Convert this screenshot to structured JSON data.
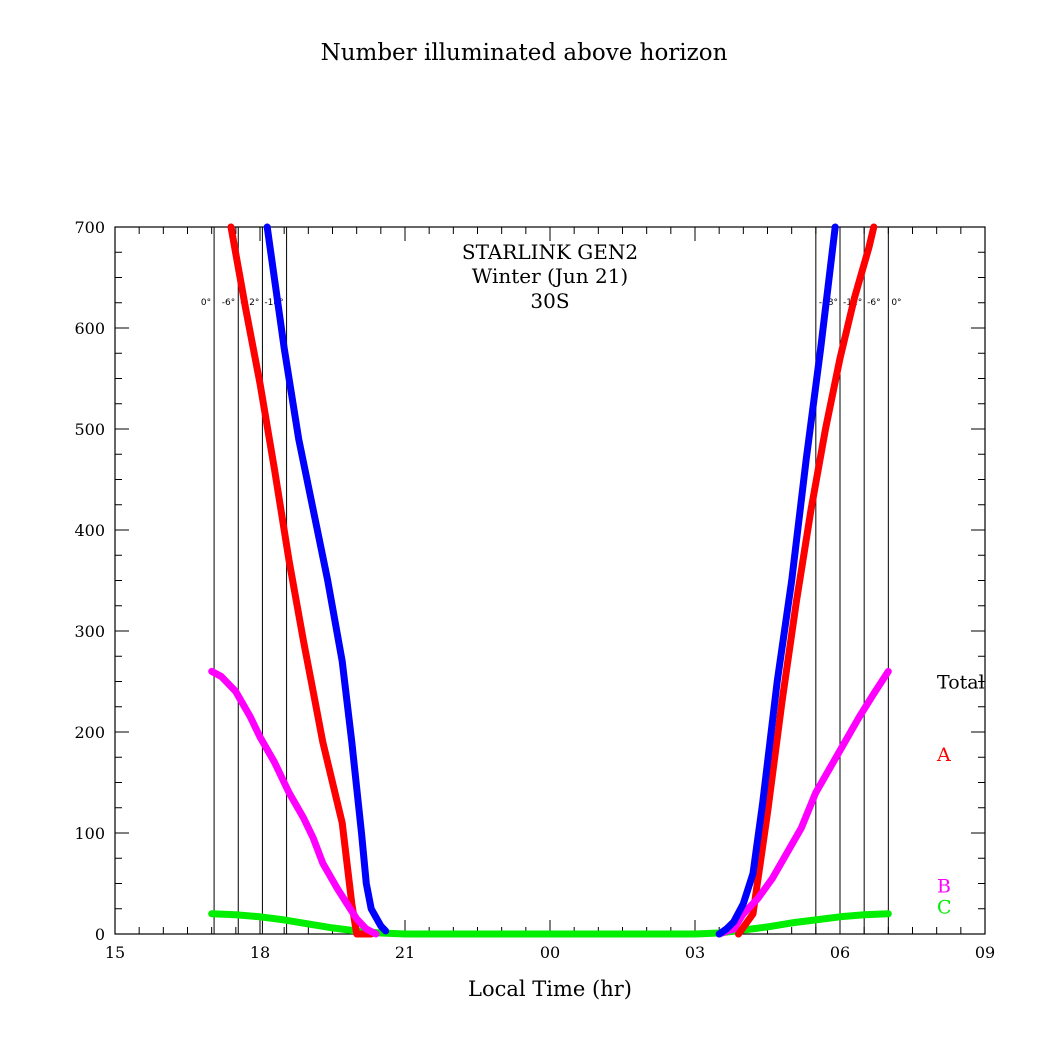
{
  "chart_data": {
    "type": "line",
    "title": "Number illuminated above horizon",
    "annotation": [
      "STARLINK GEN2",
      "Winter (Jun 21)",
      "30S"
    ],
    "xlabel": "Local Time (hr)",
    "ylabel": "",
    "xlim": [
      15,
      33
    ],
    "ylim": [
      0,
      700
    ],
    "x_ticks": [
      {
        "value": 15,
        "label": "15"
      },
      {
        "value": 18,
        "label": "18"
      },
      {
        "value": 21,
        "label": "21"
      },
      {
        "value": 24,
        "label": "00"
      },
      {
        "value": 27,
        "label": "03"
      },
      {
        "value": 30,
        "label": "06"
      },
      {
        "value": 33,
        "label": "09"
      }
    ],
    "y_ticks": [
      0,
      100,
      200,
      300,
      400,
      500,
      600,
      700
    ],
    "y_tick_labels": [
      "0",
      "100",
      "200",
      "300",
      "400",
      "500",
      "600",
      "700"
    ],
    "sun_altitude_lines": {
      "evening": [
        {
          "x": 17.05,
          "label": "0°"
        },
        {
          "x": 17.55,
          "label": "-6°"
        },
        {
          "x": 18.05,
          "label": "-12°"
        },
        {
          "x": 18.55,
          "label": "-18°"
        }
      ],
      "morning": [
        {
          "x": 29.5,
          "label": "-18°"
        },
        {
          "x": 30.0,
          "label": "-12°"
        },
        {
          "x": 30.5,
          "label": "-6°"
        },
        {
          "x": 31.0,
          "label": "0°"
        }
      ]
    },
    "grid": false,
    "legend_placement": "right",
    "series": [
      {
        "name": "Total",
        "color": "#0000ff",
        "points": [
          [
            18.15,
            700
          ],
          [
            18.5,
            580
          ],
          [
            18.8,
            490
          ],
          [
            19.1,
            420
          ],
          [
            19.4,
            350
          ],
          [
            19.7,
            270
          ],
          [
            19.9,
            190
          ],
          [
            20.1,
            100
          ],
          [
            20.2,
            50
          ],
          [
            20.3,
            25
          ],
          [
            20.5,
            8
          ],
          [
            20.6,
            3
          ],
          [
            27.5,
            0
          ],
          [
            27.65,
            5
          ],
          [
            27.8,
            12
          ],
          [
            28.0,
            30
          ],
          [
            28.2,
            60
          ],
          [
            28.4,
            130
          ],
          [
            28.7,
            250
          ],
          [
            29.0,
            350
          ],
          [
            29.3,
            470
          ],
          [
            29.6,
            580
          ],
          [
            29.9,
            700
          ]
        ]
      },
      {
        "name": "A",
        "color": "#ff0000",
        "points": [
          [
            17.4,
            700
          ],
          [
            17.7,
            620
          ],
          [
            18.0,
            545
          ],
          [
            18.3,
            460
          ],
          [
            18.6,
            370
          ],
          [
            18.9,
            290
          ],
          [
            19.1,
            240
          ],
          [
            19.3,
            190
          ],
          [
            19.5,
            150
          ],
          [
            19.7,
            110
          ],
          [
            19.8,
            70
          ],
          [
            19.9,
            30
          ],
          [
            20.0,
            0
          ],
          [
            20.3,
            0
          ],
          [
            27.9,
            0
          ],
          [
            28.2,
            20
          ],
          [
            28.5,
            120
          ],
          [
            28.8,
            230
          ],
          [
            29.1,
            330
          ],
          [
            29.4,
            420
          ],
          [
            29.7,
            500
          ],
          [
            30.0,
            570
          ],
          [
            30.3,
            630
          ],
          [
            30.6,
            680
          ],
          [
            30.7,
            700
          ]
        ]
      },
      {
        "name": "B",
        "color": "#ff00ff",
        "points": [
          [
            17.0,
            260
          ],
          [
            17.2,
            255
          ],
          [
            17.5,
            240
          ],
          [
            17.8,
            215
          ],
          [
            18.0,
            195
          ],
          [
            18.3,
            170
          ],
          [
            18.6,
            140
          ],
          [
            18.9,
            115
          ],
          [
            19.1,
            95
          ],
          [
            19.3,
            70
          ],
          [
            19.6,
            45
          ],
          [
            19.8,
            30
          ],
          [
            20.0,
            15
          ],
          [
            20.2,
            5
          ],
          [
            20.4,
            0
          ],
          [
            27.5,
            0
          ],
          [
            27.8,
            5
          ],
          [
            28.0,
            20
          ],
          [
            28.3,
            35
          ],
          [
            28.6,
            55
          ],
          [
            28.9,
            80
          ],
          [
            29.2,
            105
          ],
          [
            29.5,
            140
          ],
          [
            29.8,
            165
          ],
          [
            30.1,
            190
          ],
          [
            30.4,
            215
          ],
          [
            30.7,
            238
          ],
          [
            31.0,
            260
          ]
        ]
      },
      {
        "name": "C",
        "color": "#00ee00",
        "points": [
          [
            17.0,
            20
          ],
          [
            17.5,
            19
          ],
          [
            18.0,
            17
          ],
          [
            18.5,
            14
          ],
          [
            19.0,
            10
          ],
          [
            19.5,
            6
          ],
          [
            20.0,
            3
          ],
          [
            20.5,
            1
          ],
          [
            21.0,
            0
          ],
          [
            24.0,
            0
          ],
          [
            27.0,
            0
          ],
          [
            27.5,
            1
          ],
          [
            28.0,
            4
          ],
          [
            28.5,
            7
          ],
          [
            29.0,
            11
          ],
          [
            29.5,
            14
          ],
          [
            30.0,
            17
          ],
          [
            30.5,
            19
          ],
          [
            31.0,
            20
          ]
        ]
      }
    ],
    "legend": [
      {
        "label": "Total",
        "color": "#000000",
        "y": 250
      },
      {
        "label": "A",
        "color": "#ff0000",
        "y": 178
      },
      {
        "label": "B",
        "color": "#ff00ff",
        "y": 48
      },
      {
        "label": "C",
        "color": "#00ee00",
        "y": 27
      }
    ]
  }
}
